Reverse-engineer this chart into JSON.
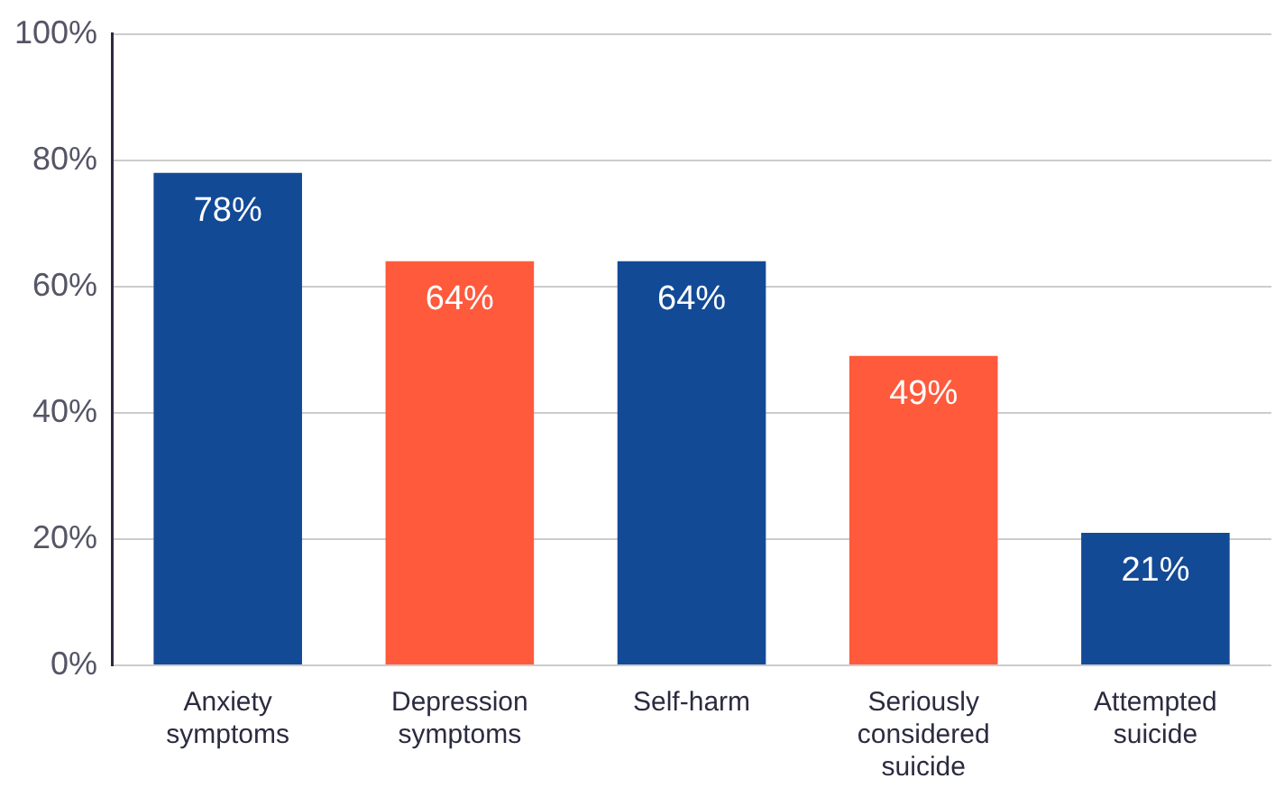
{
  "chart_data": {
    "type": "bar",
    "categories": [
      "Anxiety symptoms",
      "Depression symptoms",
      "Self-harm",
      "Seriously considered suicide",
      "Attempted suicide"
    ],
    "values": [
      78,
      64,
      64,
      49,
      21
    ],
    "colors": [
      "#134a96",
      "#ff5a3c",
      "#134a96",
      "#ff5a3c",
      "#134a96"
    ],
    "value_labels": [
      "78%",
      "64%",
      "64%",
      "49%",
      "21%"
    ],
    "ylim": [
      0,
      100
    ],
    "yticks": [
      {
        "value": 0,
        "label": "0%"
      },
      {
        "value": 20,
        "label": "20%"
      },
      {
        "value": 40,
        "label": "40%"
      },
      {
        "value": 60,
        "label": "60%"
      },
      {
        "value": 80,
        "label": "80%"
      },
      {
        "value": 100,
        "label": "100%"
      }
    ],
    "grid": "y",
    "legend": false
  }
}
